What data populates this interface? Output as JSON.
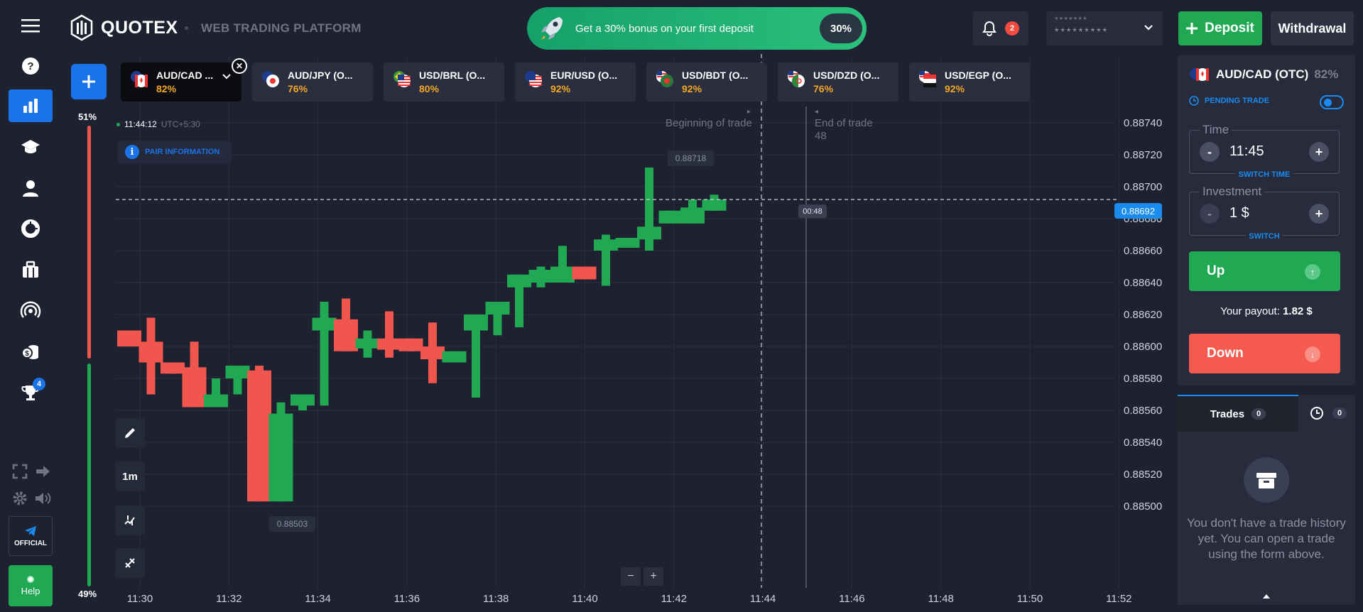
{
  "header": {
    "brand": "QUOTEX",
    "platform": "WEB TRADING PLATFORM",
    "promo_text": "Get a 30% bonus on your first deposit",
    "promo_badge": "30%",
    "notifications_count": "2",
    "account_masked_1": "*******",
    "account_masked_2": "*********",
    "deposit_label": "Deposit",
    "withdrawal_label": "Withdrawal"
  },
  "sidebar": {
    "items": [
      {
        "icon": "help-circle-icon"
      },
      {
        "icon": "chart-bars-icon",
        "active": true
      },
      {
        "icon": "graduation-cap-icon"
      },
      {
        "icon": "user-icon"
      },
      {
        "icon": "donut-chart-icon"
      },
      {
        "icon": "market-shop-icon"
      },
      {
        "icon": "signal-broadcast-icon"
      },
      {
        "icon": "coins-dollar-icon"
      },
      {
        "icon": "trophy-icon",
        "badge": "4"
      }
    ],
    "official_label": "OFFICIAL",
    "help_label": "Help"
  },
  "tabs": [
    {
      "name": "AUD/CAD ...",
      "pct": "82%",
      "active": true
    },
    {
      "name": "AUD/JPY (O...",
      "pct": "76%"
    },
    {
      "name": "USD/BRL (O...",
      "pct": "80%"
    },
    {
      "name": "EUR/USD (O...",
      "pct": "92%"
    },
    {
      "name": "USD/BDT (O...",
      "pct": "92%"
    },
    {
      "name": "USD/DZD (O...",
      "pct": "76%"
    },
    {
      "name": "USD/EGP (O...",
      "pct": "92%"
    }
  ],
  "sentiment": {
    "up": "51%",
    "down": "49%"
  },
  "chart": {
    "clock": "11:44:12",
    "timezone": "UTC+5:30",
    "pair_info_label": "PAIR INFORMATION",
    "timeframe": "1m",
    "current_price": "0.88692",
    "timer": "00:48",
    "high_label": "0.88718",
    "low_label": "0.88503",
    "beginning_label": "Beginning of trade",
    "end_label": "End of trade",
    "end_sub": "48"
  },
  "chart_data": {
    "type": "candlestick",
    "price_ticks": [
      "0.88740",
      "0.88720",
      "0.88700",
      "0.88680",
      "0.88660",
      "0.88640",
      "0.88620",
      "0.88600",
      "0.88580",
      "0.88560",
      "0.88540",
      "0.88520",
      "0.88500"
    ],
    "time_ticks": [
      "11:30",
      "11:32",
      "11:34",
      "11:36",
      "11:38",
      "11:40",
      "11:42",
      "11:44",
      "11:46",
      "11:48",
      "11:50",
      "11:52"
    ],
    "ylim": [
      0.88495,
      0.88745
    ],
    "candles": [
      {
        "open": 0.8861,
        "close": 0.886,
        "high": 0.8861,
        "low": 0.886
      },
      {
        "open": 0.88603,
        "close": 0.8859,
        "high": 0.88618,
        "low": 0.8857
      },
      {
        "open": 0.8859,
        "close": 0.88583,
        "high": 0.8859,
        "low": 0.88583
      },
      {
        "open": 0.88587,
        "close": 0.88562,
        "high": 0.88603,
        "low": 0.88562
      },
      {
        "open": 0.88562,
        "close": 0.8857,
        "high": 0.8858,
        "low": 0.88562
      },
      {
        "open": 0.8858,
        "close": 0.88588,
        "high": 0.88588,
        "low": 0.8857
      },
      {
        "open": 0.88585,
        "close": 0.88503,
        "high": 0.88588,
        "low": 0.88503
      },
      {
        "open": 0.88503,
        "close": 0.88558,
        "high": 0.88565,
        "low": 0.88503
      },
      {
        "open": 0.88563,
        "close": 0.8857,
        "high": 0.8857,
        "low": 0.8856
      },
      {
        "open": 0.8861,
        "close": 0.88618,
        "high": 0.88628,
        "low": 0.88563
      },
      {
        "open": 0.88617,
        "close": 0.88597,
        "high": 0.8863,
        "low": 0.88597
      },
      {
        "open": 0.886,
        "close": 0.88605,
        "high": 0.8861,
        "low": 0.88593
      },
      {
        "open": 0.88605,
        "close": 0.88598,
        "high": 0.88622,
        "low": 0.88593
      },
      {
        "open": 0.88605,
        "close": 0.88597,
        "high": 0.88605,
        "low": 0.88597
      },
      {
        "open": 0.886,
        "close": 0.88592,
        "high": 0.88615,
        "low": 0.88577
      },
      {
        "open": 0.8859,
        "close": 0.88597,
        "high": 0.88597,
        "low": 0.8859
      },
      {
        "open": 0.8861,
        "close": 0.8862,
        "high": 0.8862,
        "low": 0.88568
      },
      {
        "open": 0.8862,
        "close": 0.88628,
        "high": 0.88628,
        "low": 0.88607
      },
      {
        "open": 0.88637,
        "close": 0.88645,
        "high": 0.88645,
        "low": 0.88612
      },
      {
        "open": 0.8864,
        "close": 0.88648,
        "high": 0.8865,
        "low": 0.88637
      },
      {
        "open": 0.8864,
        "close": 0.8865,
        "high": 0.88663,
        "low": 0.8864
      },
      {
        "open": 0.8865,
        "close": 0.88642,
        "high": 0.8865,
        "low": 0.88642
      },
      {
        "open": 0.8866,
        "close": 0.88667,
        "high": 0.8867,
        "low": 0.88638
      },
      {
        "open": 0.88663,
        "close": 0.88668,
        "high": 0.88668,
        "low": 0.88663
      },
      {
        "open": 0.88667,
        "close": 0.88675,
        "high": 0.88712,
        "low": 0.8866
      },
      {
        "open": 0.88677,
        "close": 0.88685,
        "high": 0.88685,
        "low": 0.88677
      },
      {
        "open": 0.88677,
        "close": 0.88687,
        "high": 0.88692,
        "low": 0.88677
      },
      {
        "open": 0.88685,
        "close": 0.88692,
        "high": 0.88695,
        "low": 0.88685
      }
    ]
  },
  "trade": {
    "asset": "AUD/CAD (OTC)",
    "asset_pct": "82%",
    "pending_label": "PENDING TRADE",
    "time_legend": "Time",
    "time_value": "11:45",
    "time_sub": "SWITCH TIME",
    "invest_legend": "Investment",
    "invest_value": "1 $",
    "invest_sub": "SWITCH",
    "up_label": "Up",
    "payout_label": "Your payout:",
    "payout_value": "1.82 $",
    "down_label": "Down"
  },
  "trades": {
    "tab_label": "Trades",
    "tab_count": "0",
    "history_count": "0",
    "empty_text": "You don't have a trade history yet. You can open a trade using the form above."
  },
  "colors": {
    "up": "#20a853",
    "down": "#f0564d",
    "accent": "#1a73e8",
    "bg": "#1e2130"
  }
}
